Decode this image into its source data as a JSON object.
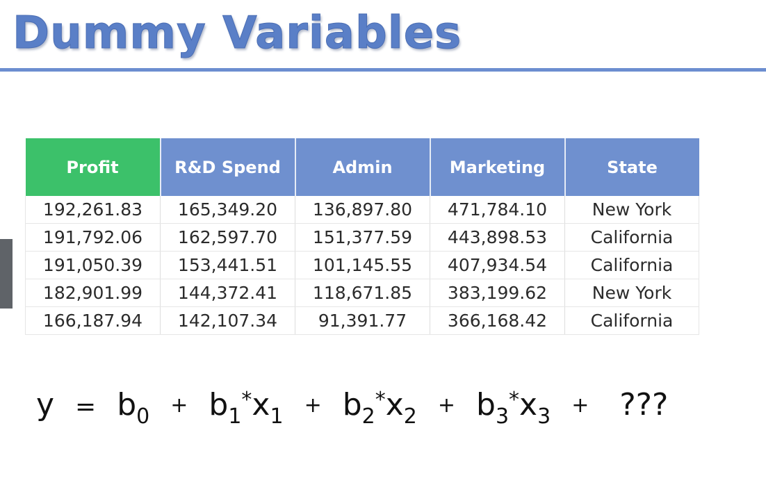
{
  "slide": {
    "title": "Dummy Variables"
  },
  "table": {
    "headers": [
      "Profit",
      "R&D Spend",
      "Admin",
      "Marketing",
      "State"
    ],
    "rows": [
      [
        "192,261.83",
        "165,349.20",
        "136,897.80",
        "471,784.10",
        "New York"
      ],
      [
        "191,792.06",
        "162,597.70",
        "151,377.59",
        "443,898.53",
        "California"
      ],
      [
        "191,050.39",
        "153,441.51",
        "101,145.55",
        "407,934.54",
        "California"
      ],
      [
        "182,901.99",
        "144,372.41",
        "118,671.85",
        "383,199.62",
        "New York"
      ],
      [
        "166,187.94",
        "142,107.34",
        "91,391.77",
        "366,168.42",
        "California"
      ]
    ]
  },
  "equation": {
    "y": "y",
    "equals": "=",
    "plus": "+",
    "times": "*",
    "b": "b",
    "x": "x",
    "sub0": "0",
    "sub1": "1",
    "sub2": "2",
    "sub3": "3",
    "unknown": "???"
  },
  "colors": {
    "title": "#5a7fc7",
    "header_profit": "#3cc16a",
    "header_other": "#6f90cf",
    "rule": "#6c8ed0"
  }
}
